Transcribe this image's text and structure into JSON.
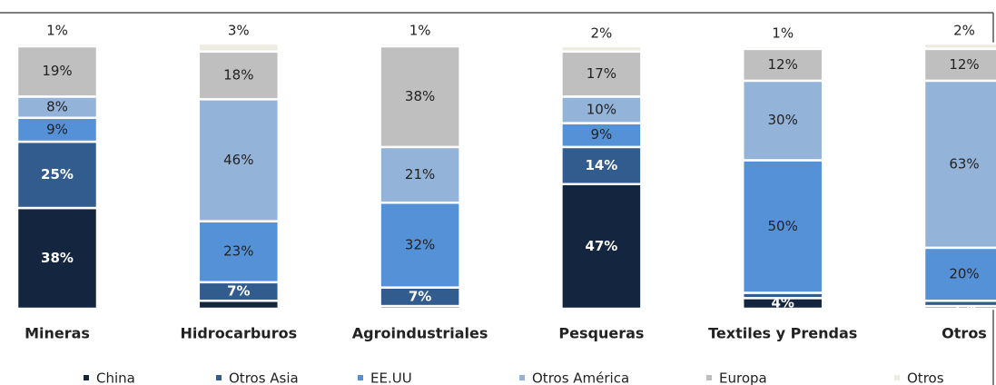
{
  "chart_data": {
    "type": "stacked_bar",
    "categories": [
      "Mineras",
      "Hidrocarburos",
      "Agroindustriales",
      "Pesqueras",
      "Textiles y Prendas",
      "Otros"
    ],
    "ylim": [
      0,
      100
    ],
    "series": [
      {
        "name": "China",
        "color": "#14253f",
        "values": [
          38,
          3,
          1,
          47,
          4,
          1
        ],
        "value_labels": [
          "38%",
          null,
          null,
          "47%",
          "4%",
          "1%"
        ]
      },
      {
        "name": "Otros Asia",
        "color": "#335c8e",
        "values": [
          25,
          7,
          7,
          14,
          2,
          2
        ],
        "value_labels": [
          "25%",
          "7%",
          "7%",
          "14%",
          null,
          null
        ]
      },
      {
        "name": "EE.UU",
        "color": "#5591d6",
        "values": [
          9,
          23,
          32,
          9,
          50,
          20
        ],
        "value_labels": [
          "9%",
          "23%",
          "32%",
          "9%",
          "50%",
          "20%"
        ]
      },
      {
        "name": "Otros América",
        "color": "#94b3d8",
        "values": [
          8,
          46,
          21,
          10,
          30,
          63
        ],
        "value_labels": [
          "8%",
          "46%",
          "21%",
          "10%",
          "30%",
          "63%"
        ]
      },
      {
        "name": "Europa",
        "color": "#bfbfbf",
        "values": [
          19,
          18,
          38,
          17,
          12,
          12
        ],
        "value_labels": [
          "19%",
          "18%",
          "38%",
          "17%",
          "12%",
          "12%"
        ]
      },
      {
        "name": "Otros",
        "color": "#eeebe0",
        "values": [
          1,
          3,
          1,
          2,
          1,
          2
        ],
        "value_labels": [
          "1%",
          "3%",
          "1%",
          "2%",
          "1%",
          "2%"
        ]
      }
    ]
  }
}
